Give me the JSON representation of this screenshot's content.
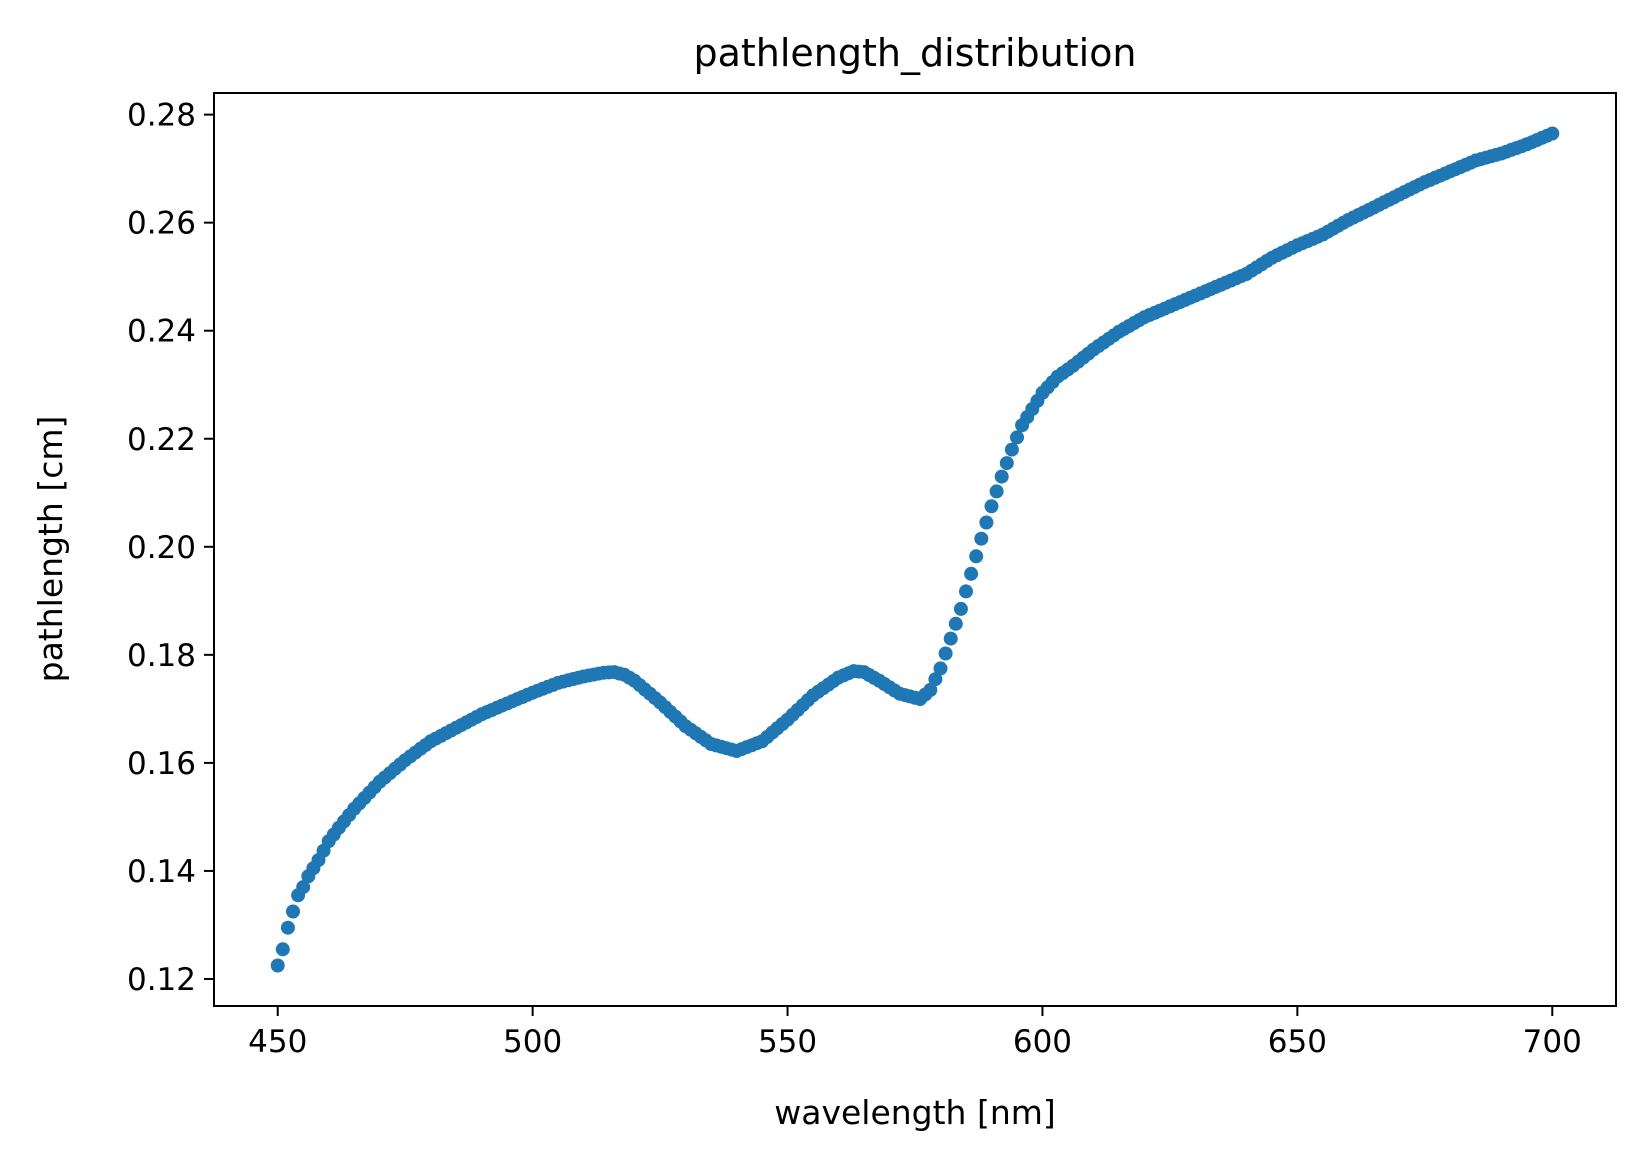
{
  "chart_data": {
    "type": "scatter",
    "title": "pathlength_distribution",
    "xlabel": "wavelength [nm]",
    "ylabel": "pathlength [cm]",
    "xlim": [
      437.5,
      712.5
    ],
    "ylim": [
      0.115,
      0.284
    ],
    "xticks": [
      450,
      500,
      550,
      600,
      650,
      700
    ],
    "xtick_labels": [
      "450",
      "500",
      "550",
      "600",
      "650",
      "700"
    ],
    "yticks": [
      0.12,
      0.14,
      0.16,
      0.18,
      0.2,
      0.22,
      0.24,
      0.26,
      0.28
    ],
    "ytick_labels": [
      "0.12",
      "0.14",
      "0.16",
      "0.18",
      "0.20",
      "0.22",
      "0.24",
      "0.26",
      "0.28"
    ],
    "grid": false,
    "color": "#1f77b4",
    "series": [
      {
        "x": [
          450,
          451,
          452,
          453,
          454,
          455,
          456,
          458,
          460,
          462,
          465,
          468,
          470,
          475,
          480,
          485,
          490,
          495,
          500,
          505,
          510,
          514,
          516,
          518,
          520,
          525,
          530,
          535,
          540,
          545,
          550,
          555,
          560,
          563,
          565,
          568,
          572,
          576,
          578,
          580,
          582,
          584,
          586,
          588,
          590,
          592,
          594,
          596,
          598,
          600,
          603,
          606,
          610,
          615,
          620,
          625,
          630,
          635,
          640,
          645,
          650,
          655,
          660,
          665,
          670,
          675,
          680,
          685,
          690,
          695,
          700
        ],
        "y": [
          0.1225,
          0.1255,
          0.1295,
          0.1325,
          0.1355,
          0.137,
          0.139,
          0.142,
          0.1455,
          0.148,
          0.1515,
          0.1545,
          0.1565,
          0.1605,
          0.164,
          0.1665,
          0.169,
          0.171,
          0.173,
          0.1748,
          0.176,
          0.1767,
          0.1768,
          0.1763,
          0.1752,
          0.1712,
          0.1668,
          0.1635,
          0.1622,
          0.164,
          0.168,
          0.1725,
          0.1758,
          0.177,
          0.1768,
          0.1752,
          0.1728,
          0.1718,
          0.1735,
          0.1775,
          0.183,
          0.1885,
          0.195,
          0.2015,
          0.2075,
          0.213,
          0.218,
          0.2225,
          0.2255,
          0.2285,
          0.2315,
          0.2335,
          0.2365,
          0.2398,
          0.2425,
          0.2445,
          0.2465,
          0.2485,
          0.2505,
          0.2535,
          0.2558,
          0.2578,
          0.2605,
          0.2628,
          0.2652,
          0.2675,
          0.2695,
          0.2715,
          0.2728,
          0.2745,
          0.2765
        ]
      }
    ]
  }
}
